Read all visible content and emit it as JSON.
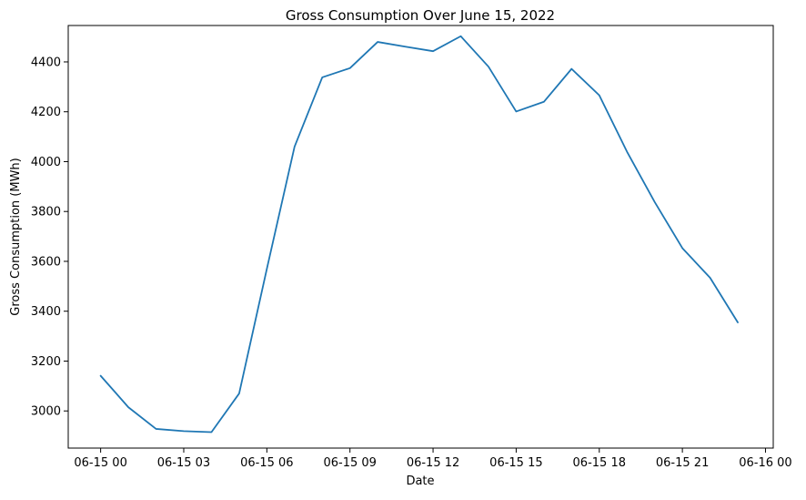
{
  "chart_data": {
    "type": "line",
    "title": "Gross Consumption Over June 15, 2022",
    "xlabel": "Date",
    "ylabel": "Gross Consumption (MWh)",
    "x_ticks": [
      "06-15 00",
      "06-15 03",
      "06-15 06",
      "06-15 09",
      "06-15 12",
      "06-15 15",
      "06-15 18",
      "06-15 21",
      "06-16 00"
    ],
    "x_tick_hours": [
      0,
      3,
      6,
      9,
      12,
      15,
      18,
      21,
      24
    ],
    "xlim_hours": [
      -1.17,
      24.28
    ],
    "y_ticks": [
      3000,
      3200,
      3400,
      3600,
      3800,
      4000,
      4200,
      4400
    ],
    "ylim": [
      2851,
      4546
    ],
    "grid": false,
    "legend": "none",
    "series": [
      {
        "color": "#1f77b4",
        "x_hours": [
          0,
          1,
          2,
          3,
          4,
          5,
          6,
          7,
          8,
          9,
          10,
          11,
          12,
          13,
          14,
          15,
          16,
          17,
          18,
          19,
          20,
          21,
          22,
          23
        ],
        "values": [
          3141,
          3015,
          2928,
          2919,
          2915,
          3070,
          3570,
          4060,
          4338,
          4375,
          4480,
          4461,
          4443,
          4503,
          4381,
          4201,
          4240,
          4372,
          4266,
          4040,
          3838,
          3653,
          3534,
          3355
        ]
      }
    ]
  }
}
